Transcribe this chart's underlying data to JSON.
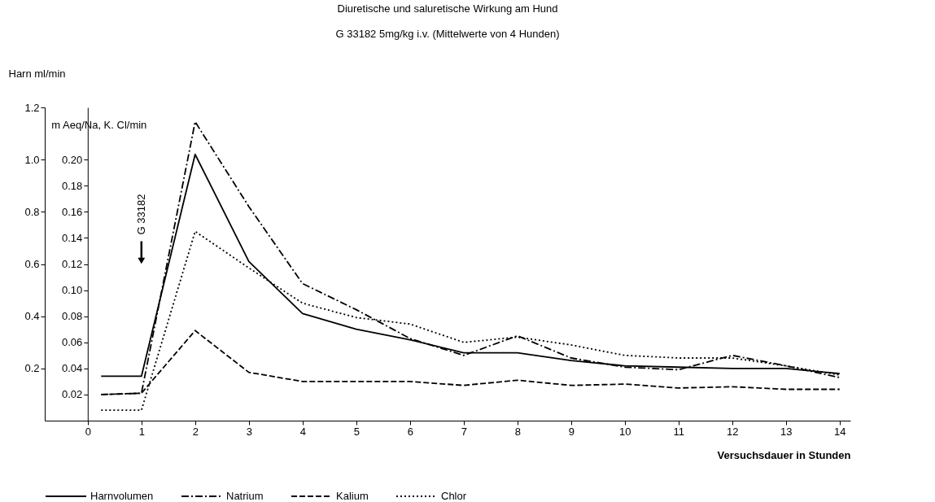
{
  "chart_data": {
    "type": "line",
    "title": "Diuretische und saluretische Wirkung am Hund",
    "subtitle": "G 33182 5mg/kg i.v. (Mittelwerte von 4 Hunden)",
    "xlabel": "Versuchsdauer in Stunden",
    "ylabel": "Harn ml/min",
    "y2label": "m Aeq/Na, K. Cl/min",
    "x": [
      0.25,
      1,
      2,
      3,
      4,
      5,
      6,
      7,
      8,
      9,
      10,
      11,
      12,
      13,
      14
    ],
    "series": [
      {
        "name": "Harnvolumen",
        "color": "#000000",
        "line_style": "solid",
        "values": [
          0.17,
          0.17,
          1.02,
          0.61,
          0.41,
          0.35,
          0.31,
          0.26,
          0.26,
          0.23,
          0.21,
          0.205,
          0.2,
          0.2,
          0.18
        ]
      },
      {
        "name": "Natrium",
        "color": "#000000",
        "line_style": "dashdot",
        "axis": "y2",
        "values": [
          0.02,
          0.021,
          0.229,
          0.164,
          0.105,
          0.085,
          0.063,
          0.05,
          0.065,
          0.048,
          0.041,
          0.039,
          0.05,
          0.042,
          0.033
        ]
      },
      {
        "name": "Kalium",
        "color": "#000000",
        "line_style": "dashed",
        "axis": "y2",
        "values": [
          0.02,
          0.021,
          0.069,
          0.037,
          0.03,
          0.03,
          0.03,
          0.027,
          0.031,
          0.027,
          0.028,
          0.025,
          0.026,
          0.024,
          0.024
        ]
      },
      {
        "name": "Chlor",
        "color": "#000000",
        "line_style": "dotted",
        "axis": "y2",
        "values": [
          0.008,
          0.008,
          0.145,
          0.117,
          0.09,
          0.079,
          0.074,
          0.06,
          0.064,
          0.058,
          0.05,
          0.048,
          0.048,
          0.042,
          0.035
        ]
      }
    ],
    "xlim": [
      -0.8,
      14.2
    ],
    "xticks": [
      0,
      1,
      2,
      3,
      4,
      5,
      6,
      7,
      8,
      9,
      10,
      11,
      12,
      13,
      14
    ],
    "ylim": [
      0,
      1.2
    ],
    "yticks": [
      0.2,
      0.4,
      0.6,
      0.8,
      {
        "value": 1,
        "label": "1.0"
      },
      1.2
    ],
    "y2lim": [
      0,
      0.24
    ],
    "y2ticks": [
      0.02,
      0.04,
      0.06,
      0.08,
      {
        "value": 0.1,
        "label": "0.10"
      },
      0.12,
      0.14,
      0.16,
      0.18,
      {
        "value": 0.2,
        "label": "0.20"
      }
    ],
    "annotations": [
      "G 33182"
    ],
    "legend": "bottom",
    "grid": false
  }
}
